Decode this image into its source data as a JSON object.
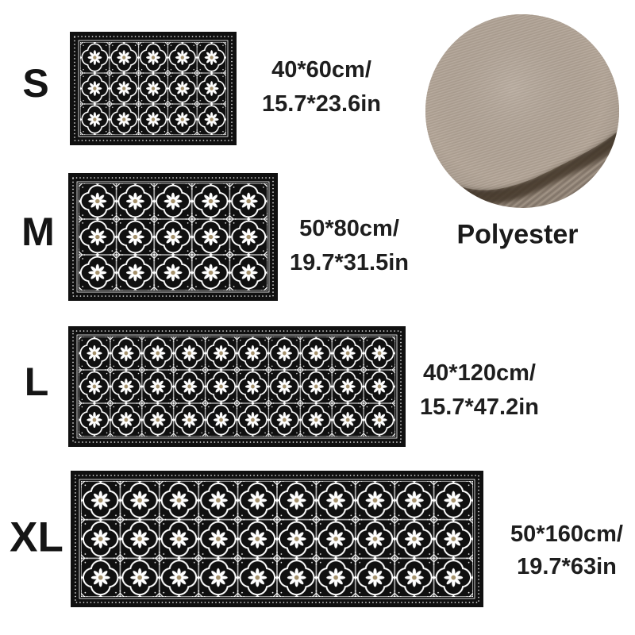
{
  "product": {
    "material_label": "Polyester"
  },
  "sizes": [
    {
      "label": "S",
      "dimensions_cm": "40*60cm/",
      "dimensions_in": "15.7*23.6in"
    },
    {
      "label": "M",
      "dimensions_cm": "50*80cm/",
      "dimensions_in": "19.7*31.5in"
    },
    {
      "label": "L",
      "dimensions_cm": "40*120cm/",
      "dimensions_in": "15.7*47.2in"
    },
    {
      "label": "XL",
      "dimensions_cm": "50*160cm/",
      "dimensions_in": "19.7*63in"
    }
  ],
  "colors": {
    "background": "#ffffff",
    "mat_black": "#101010",
    "pattern_white": "#ffffff",
    "flower_center": "#a4906a",
    "text": "#1e1e1e",
    "fabric_top": "#b1a396",
    "fabric_under": "#95877a",
    "fabric_shadow": "#44382c"
  }
}
